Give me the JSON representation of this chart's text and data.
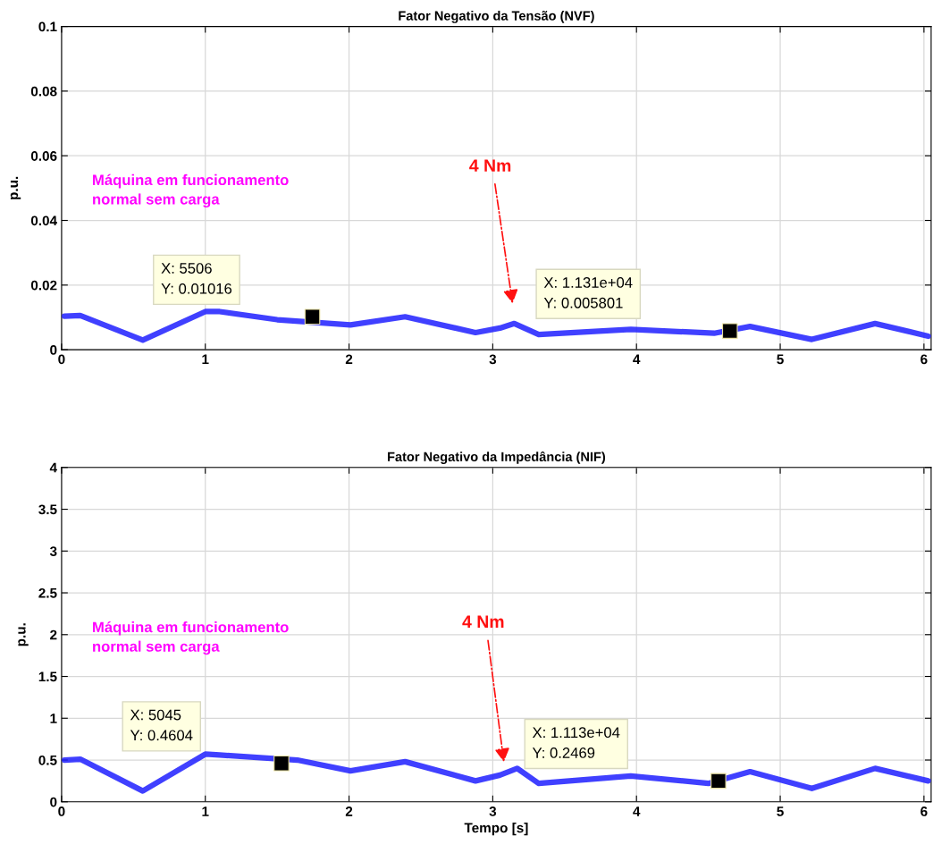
{
  "chart_data": [
    {
      "type": "line",
      "title": "Fator Negativo da Tensão (NVF)",
      "ylabel": "p.u.",
      "xlim": [
        0,
        6.05
      ],
      "xticks": [
        0,
        1,
        2,
        3,
        4,
        5,
        6
      ],
      "ylim": [
        0,
        0.1
      ],
      "yticks": [
        0,
        0.02,
        0.04,
        0.06,
        0.08,
        0.1
      ],
      "grid": true,
      "legend": false,
      "series": [
        {
          "color": "#1f1fff",
          "x": [
            0.02,
            0.13,
            0.565,
            1.0,
            1.1,
            1.5,
            2.01,
            2.39,
            2.88,
            3.05,
            3.15,
            3.32,
            3.96,
            4.54,
            4.79,
            5.22,
            5.66,
            6.03
          ],
          "values": [
            0.0104,
            0.0106,
            0.003,
            0.0118,
            0.0118,
            0.0093,
            0.0077,
            0.0102,
            0.0053,
            0.0067,
            0.0081,
            0.0047,
            0.0063,
            0.0051,
            0.0072,
            0.0032,
            0.0081,
            0.0042
          ]
        },
        {
          "type": "scatter",
          "marker": "square",
          "color": "#000000",
          "x": [
            1.745,
            4.65
          ],
          "values": [
            0.0102,
            0.0058
          ]
        }
      ],
      "annotations": [
        "Máquina em funcionamento\nnormal sem carga",
        "4 Nm",
        "X: 5506\nY: 0.01016",
        "X: 1.131e+04\nY: 0.005801"
      ]
    },
    {
      "type": "line",
      "title": "Fator Negativo da Impedância (NIF)",
      "xlabel": "Tempo [s]",
      "ylabel": "p.u.",
      "xlim": [
        0,
        6.05
      ],
      "xticks": [
        0,
        1,
        2,
        3,
        4,
        5,
        6
      ],
      "ylim": [
        0,
        4
      ],
      "yticks": [
        0,
        0.5,
        1,
        1.5,
        2,
        2.5,
        3,
        3.5,
        4
      ],
      "grid": true,
      "legend": false,
      "series": [
        {
          "color": "#1f1fff",
          "x": [
            0.02,
            0.13,
            0.565,
            1.0,
            1.1,
            1.64,
            2.01,
            2.39,
            2.88,
            3.05,
            3.17,
            3.32,
            3.96,
            4.5,
            4.79,
            5.22,
            5.66,
            6.03
          ],
          "values": [
            0.5,
            0.51,
            0.13,
            0.57,
            0.56,
            0.5,
            0.37,
            0.48,
            0.25,
            0.32,
            0.4,
            0.22,
            0.31,
            0.22,
            0.36,
            0.16,
            0.4,
            0.25
          ]
        },
        {
          "type": "scatter",
          "marker": "square",
          "color": "#000000",
          "x": [
            1.53,
            4.57
          ],
          "values": [
            0.46,
            0.25
          ]
        }
      ],
      "annotations": [
        "Máquina em funcionamento\nnormal sem carga",
        "4 Nm",
        "X: 5045\nY: 0.4604",
        "X: 1.113e+04\nY: 0.2469"
      ]
    }
  ]
}
